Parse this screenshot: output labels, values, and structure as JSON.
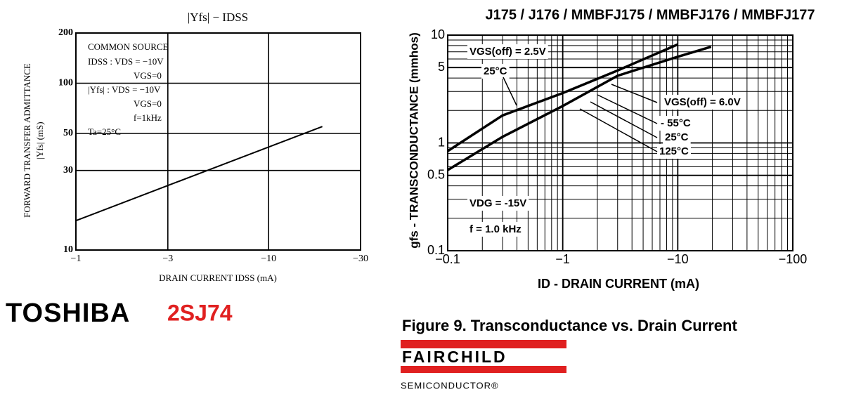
{
  "chart_data": [
    {
      "type": "line",
      "title": "|Yfs| − IDSS",
      "x_label": "DRAIN CURRENT IDSS (mA)",
      "y_label": [
        "FORWARD TRANSFER ADMITTANCE",
        "|Yfs| (mS)"
      ],
      "log_x": true,
      "log_y": true,
      "grid": true,
      "xlim": [
        -1,
        -30
      ],
      "ylim": [
        10,
        200
      ],
      "xticks": [
        {
          "value": -1,
          "label": "−1"
        },
        {
          "value": -3,
          "label": "−3"
        },
        {
          "value": -10,
          "label": "−10"
        },
        {
          "value": -30,
          "label": "−30"
        }
      ],
      "yticks": [
        10,
        30,
        50,
        100,
        200
      ],
      "series": [
        {
          "color": "#000000",
          "x": [
            -1,
            -19
          ],
          "values": [
            15,
            55
          ]
        }
      ],
      "annotations": [
        "COMMON SOURCE",
        "IDSS : VDS = −10V",
        "VGS=0",
        "|Yfs| : VDS = −10V",
        "VGS=0",
        "f=1kHz",
        "Ta=25°C"
      ]
    },
    {
      "type": "line",
      "title": "J175 / J176 / MMBFJ175 / MMBFJ176 / MMBFJ177",
      "x_label": "ID - DRAIN CURRENT (mA)",
      "y_label": [
        "gfs - TRANSCONDUCTANCE (mmhos)"
      ],
      "log_x": true,
      "log_y": true,
      "grid": true,
      "xlim": [
        -0.1,
        -100
      ],
      "ylim": [
        0.1,
        10
      ],
      "xticks": [
        {
          "value": -0.1,
          "label": "−0.1"
        },
        {
          "value": -1,
          "label": "−1"
        },
        {
          "value": -10,
          "label": "−10"
        },
        {
          "value": -100,
          "label": "−100"
        }
      ],
      "yticks": [
        0.1,
        0.5,
        1,
        5,
        10
      ],
      "xminor": [
        -0.2,
        -0.3,
        -0.4,
        -0.5,
        -0.6,
        -0.7,
        -0.8,
        -0.9,
        -2,
        -3,
        -4,
        -5,
        -6,
        -7,
        -8,
        -9,
        -20,
        -30,
        -40,
        -50,
        -60,
        -70,
        -80,
        -90
      ],
      "yminor": [
        0.2,
        0.3,
        0.4,
        0.6,
        0.7,
        0.8,
        0.9,
        2,
        3,
        4,
        6,
        7,
        8,
        9
      ],
      "series": [
        {
          "color": "#000000",
          "x": [
            -0.1,
            -0.3,
            -1,
            -3,
            -10
          ],
          "values": [
            0.84,
            1.8,
            2.9,
            4.7,
            8.2
          ]
        },
        {
          "color": "#000000",
          "x": [
            -0.1,
            -0.3,
            -1,
            -3,
            -10,
            -19.5
          ],
          "values": [
            0.56,
            1.14,
            2.2,
            4.2,
            6.3,
            7.8
          ]
        }
      ],
      "annotations": [
        "VGS(off) = 2.5V",
        "25°C",
        "VGS(off) = 6.0V",
        "- 55°C",
        "25°C",
        "125°C",
        "VDG = -15V",
        "f = 1.0 kHz"
      ]
    }
  ],
  "brands": {
    "toshiba": "TOSHIBA",
    "part": "2SJ74",
    "caption": "Figure 9. Transconductance vs. Drain Current",
    "fairchild": "FAIRCHILD",
    "semiconductor": "SEMICONDUCTOR®"
  }
}
